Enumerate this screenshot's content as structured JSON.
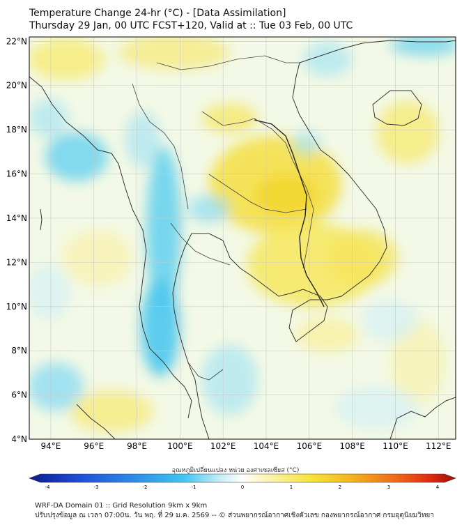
{
  "header": {
    "title_line1": "Temperature Change 24-hr (°C) - [Data Assimilation]",
    "title_line2": "Thursday 29 Jan, 00 UTC FCST+120, Valid at :: Tue 03 Feb, 00 UTC"
  },
  "map": {
    "lat_labels": [
      "22°N",
      "20°N",
      "18°N",
      "16°N",
      "14°N",
      "12°N",
      "10°N",
      "8°N",
      "6°N",
      "4°N"
    ],
    "lon_labels": [
      "94°E",
      "96°E",
      "98°E",
      "100°E",
      "102°E",
      "104°E",
      "106°E",
      "108°E",
      "110°E",
      "112°E"
    ],
    "lat_range": [
      4,
      22.2
    ],
    "lon_range": [
      93.0,
      112.8
    ],
    "colors": {
      "background": "#ffffff",
      "grid": "#c9c9c9",
      "coast": "#333333",
      "border": "#555555"
    }
  },
  "colorbar": {
    "label": "อุณหภูมิเปลี่ยนแปลง หน่วย องศาเซลเซียส (°C)",
    "ticks": [
      "-4",
      "-3",
      "-2",
      "-1",
      "0",
      "1",
      "2",
      "3",
      "4"
    ],
    "colors": [
      "#0a1a8f",
      "#1f4fd6",
      "#2f8fe8",
      "#40c4f0",
      "#8fe0f5",
      "#d8f2f8",
      "#ffffff",
      "#fbf3b0",
      "#f6e43a",
      "#f3b21e",
      "#ef6a1a",
      "#de2a12",
      "#9b0f0a"
    ]
  },
  "footer": {
    "line1": "WRF-DA Domain 01 :: Grid Resolution 9km x 9km",
    "line2": "ปรับปรุงข้อมูล ณ เวลา 07:00น. วัน พฤ. ที่ 29 ม.ค. 2569 -- © ส่วนพยากรณ์อากาศเชิงตัวเลข กองพยากรณ์อากาศ กรมอุตุนิยมวิทยา"
  }
}
